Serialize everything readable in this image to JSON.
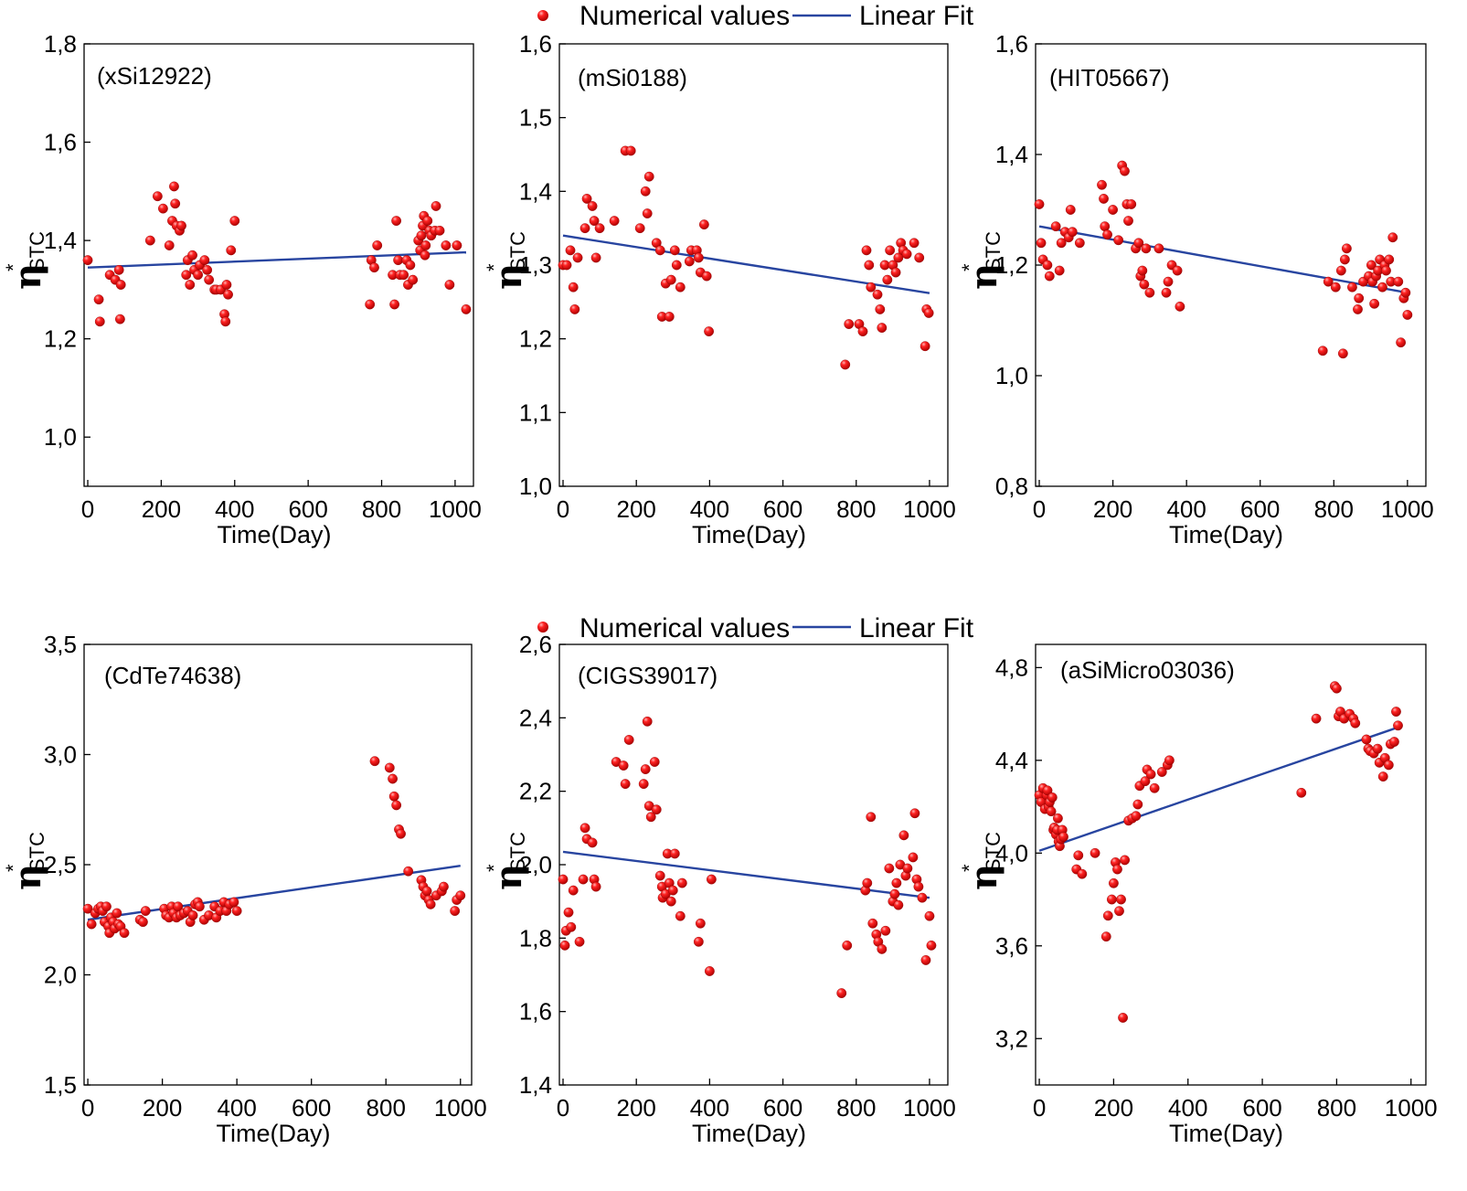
{
  "legend": {
    "points_label": "Numerical values",
    "line_label": "Linear Fit",
    "point_color": "#e41a1c",
    "line_color": "#2845a0"
  },
  "chart_data": [
    {
      "type": "scatter",
      "title": "(xSi12922)",
      "xlabel": "Time(Day)",
      "ylabel": "η*STC",
      "ylabel_main": "η",
      "ylabel_sup": "*",
      "ylabel_sub": "STC",
      "xlim": [
        -10,
        1050
      ],
      "ylim": [
        0.9,
        1.8
      ],
      "xticks": [
        0,
        200,
        400,
        600,
        800,
        1000
      ],
      "yticks": [
        1.0,
        1.2,
        1.4,
        1.6,
        1.8
      ],
      "xtick_labels": [
        "0",
        "200",
        "400",
        "600",
        "800",
        "1000"
      ],
      "ytick_labels": [
        "1,0",
        "1,2",
        "1,4",
        "1,6",
        "1,8"
      ],
      "fit": {
        "x": [
          0,
          1030
        ],
        "y": [
          1.345,
          1.376
        ]
      },
      "series": [
        {
          "name": "Numerical values",
          "x": [
            0,
            30,
            33,
            60,
            75,
            85,
            88,
            90,
            170,
            190,
            205,
            222,
            230,
            235,
            238,
            242,
            250,
            255,
            268,
            272,
            278,
            285,
            290,
            300,
            305,
            318,
            325,
            330,
            345,
            350,
            362,
            372,
            375,
            378,
            382,
            390,
            400,
            768,
            772,
            780,
            788,
            830,
            835,
            840,
            845,
            850,
            860,
            868,
            872,
            878,
            885,
            900,
            905,
            908,
            912,
            915,
            918,
            920,
            925,
            930,
            935,
            945,
            948,
            958,
            975,
            985,
            1005,
            1030
          ],
          "y": [
            1.36,
            1.28,
            1.235,
            1.33,
            1.32,
            1.34,
            1.24,
            1.31,
            1.4,
            1.49,
            1.465,
            1.39,
            1.44,
            1.51,
            1.475,
            1.43,
            1.42,
            1.43,
            1.33,
            1.36,
            1.31,
            1.37,
            1.34,
            1.33,
            1.35,
            1.36,
            1.34,
            1.32,
            1.3,
            1.3,
            1.3,
            1.25,
            1.235,
            1.31,
            1.29,
            1.38,
            1.44,
            1.27,
            1.36,
            1.345,
            1.39,
            1.33,
            1.27,
            1.44,
            1.36,
            1.33,
            1.33,
            1.36,
            1.31,
            1.35,
            1.32,
            1.4,
            1.38,
            1.41,
            1.43,
            1.45,
            1.37,
            1.39,
            1.44,
            1.42,
            1.41,
            1.42,
            1.47,
            1.42,
            1.39,
            1.31,
            1.39,
            1.26
          ]
        }
      ]
    },
    {
      "type": "scatter",
      "title": "(mSi0188)",
      "xlabel": "Time(Day)",
      "ylabel": "η*STC",
      "ylabel_main": "η",
      "ylabel_sup": "*",
      "ylabel_sub": "STC",
      "xlim": [
        -10,
        1050
      ],
      "ylim": [
        1.0,
        1.6
      ],
      "xticks": [
        0,
        200,
        400,
        600,
        800,
        1000
      ],
      "yticks": [
        1.0,
        1.1,
        1.2,
        1.3,
        1.4,
        1.5,
        1.6
      ],
      "xtick_labels": [
        "0",
        "200",
        "400",
        "600",
        "800",
        "1000"
      ],
      "ytick_labels": [
        "1,0",
        "1,1",
        "1,2",
        "1,3",
        "1,4",
        "1,5",
        "1,6"
      ],
      "fit": {
        "x": [
          0,
          1000
        ],
        "y": [
          1.34,
          1.262
        ]
      },
      "series": [
        {
          "name": "Numerical values",
          "x": [
            0,
            10,
            20,
            28,
            32,
            40,
            60,
            65,
            80,
            85,
            90,
            100,
            140,
            170,
            185,
            210,
            225,
            230,
            235,
            255,
            265,
            270,
            280,
            290,
            295,
            305,
            310,
            320,
            345,
            350,
            365,
            370,
            375,
            385,
            392,
            398,
            770,
            780,
            808,
            818,
            828,
            835,
            840,
            858,
            865,
            870,
            878,
            885,
            892,
            900,
            908,
            915,
            922,
            928,
            938,
            958,
            972,
            988,
            992,
            998
          ],
          "y": [
            1.3,
            1.3,
            1.32,
            1.27,
            1.24,
            1.31,
            1.35,
            1.39,
            1.38,
            1.36,
            1.31,
            1.35,
            1.36,
            1.455,
            1.455,
            1.35,
            1.4,
            1.37,
            1.42,
            1.33,
            1.32,
            1.23,
            1.275,
            1.23,
            1.28,
            1.32,
            1.3,
            1.27,
            1.305,
            1.32,
            1.32,
            1.31,
            1.29,
            1.355,
            1.285,
            1.21,
            1.165,
            1.22,
            1.22,
            1.21,
            1.32,
            1.3,
            1.27,
            1.26,
            1.24,
            1.215,
            1.3,
            1.28,
            1.32,
            1.3,
            1.29,
            1.31,
            1.33,
            1.32,
            1.315,
            1.33,
            1.31,
            1.19,
            1.24,
            1.235
          ]
        }
      ]
    },
    {
      "type": "scatter",
      "title": "(HIT05667)",
      "xlabel": "Time(Day)",
      "ylabel": "η*STC",
      "ylabel_main": "η",
      "ylabel_sup": "*",
      "ylabel_sub": "STC",
      "xlim": [
        -10,
        1050
      ],
      "ylim": [
        0.8,
        1.6
      ],
      "xticks": [
        0,
        200,
        400,
        600,
        800,
        1000
      ],
      "yticks": [
        0.8,
        1.0,
        1.2,
        1.4,
        1.6
      ],
      "xtick_labels": [
        "0",
        "200",
        "400",
        "600",
        "800",
        "1000"
      ],
      "ytick_labels": [
        "0,8",
        "1,0",
        "1,2",
        "1,4",
        "1,6"
      ],
      "fit": {
        "x": [
          0,
          1000
        ],
        "y": [
          1.27,
          1.15
        ]
      },
      "series": [
        {
          "name": "Numerical values",
          "x": [
            0,
            5,
            10,
            22,
            28,
            45,
            55,
            60,
            70,
            80,
            85,
            90,
            110,
            170,
            175,
            178,
            185,
            200,
            215,
            225,
            232,
            238,
            242,
            250,
            262,
            270,
            275,
            280,
            285,
            290,
            300,
            325,
            345,
            350,
            360,
            375,
            382,
            770,
            785,
            805,
            820,
            825,
            830,
            835,
            850,
            865,
            868,
            880,
            895,
            902,
            905,
            910,
            915,
            920,
            925,
            932,
            938,
            942,
            950,
            955,
            960,
            975,
            982,
            990,
            995,
            1000
          ],
          "y": [
            1.31,
            1.24,
            1.21,
            1.2,
            1.18,
            1.27,
            1.19,
            1.24,
            1.26,
            1.25,
            1.3,
            1.26,
            1.24,
            1.345,
            1.32,
            1.27,
            1.255,
            1.3,
            1.245,
            1.38,
            1.37,
            1.31,
            1.28,
            1.31,
            1.23,
            1.24,
            1.18,
            1.19,
            1.165,
            1.23,
            1.15,
            1.23,
            1.15,
            1.17,
            1.2,
            1.19,
            1.125,
            1.045,
            1.17,
            1.16,
            1.19,
            1.04,
            1.21,
            1.23,
            1.16,
            1.12,
            1.14,
            1.17,
            1.18,
            1.2,
            1.17,
            1.13,
            1.18,
            1.19,
            1.21,
            1.16,
            1.2,
            1.19,
            1.21,
            1.17,
            1.25,
            1.17,
            1.06,
            1.14,
            1.15,
            1.11
          ]
        }
      ]
    },
    {
      "type": "scatter",
      "title": "(CdTe74638)",
      "xlabel": "Time(Day)",
      "ylabel": "η*STC",
      "ylabel_main": "η",
      "ylabel_sup": "*",
      "ylabel_sub": "STC",
      "xlim": [
        -10,
        1030
      ],
      "ylim": [
        1.5,
        3.5
      ],
      "xticks": [
        0,
        200,
        400,
        600,
        800,
        1000
      ],
      "yticks": [
        1.5,
        2.0,
        2.5,
        3.0,
        3.5
      ],
      "xtick_labels": [
        "0",
        "200",
        "400",
        "600",
        "800",
        "1000"
      ],
      "ytick_labels": [
        "1,5",
        "2,0",
        "2,5",
        "3,0",
        "3,5"
      ],
      "fit": {
        "x": [
          0,
          1000
        ],
        "y": [
          2.25,
          2.495
        ]
      },
      "series": [
        {
          "name": "Numerical values",
          "x": [
            0,
            10,
            20,
            28,
            35,
            40,
            45,
            50,
            55,
            58,
            62,
            68,
            72,
            78,
            82,
            88,
            98,
            140,
            148,
            155,
            205,
            210,
            218,
            225,
            230,
            238,
            242,
            248,
            258,
            268,
            275,
            282,
            288,
            295,
            300,
            312,
            325,
            340,
            345,
            355,
            365,
            372,
            380,
            392,
            400,
            770,
            810,
            818,
            822,
            828,
            835,
            840,
            860,
            895,
            900,
            905,
            910,
            915,
            920,
            935,
            950,
            955,
            985,
            990,
            1000
          ],
          "y": [
            2.3,
            2.23,
            2.28,
            2.3,
            2.31,
            2.29,
            2.24,
            2.31,
            2.22,
            2.19,
            2.26,
            2.24,
            2.21,
            2.28,
            2.23,
            2.22,
            2.19,
            2.25,
            2.24,
            2.29,
            2.3,
            2.27,
            2.26,
            2.31,
            2.28,
            2.26,
            2.31,
            2.27,
            2.28,
            2.29,
            2.24,
            2.27,
            2.32,
            2.33,
            2.31,
            2.25,
            2.27,
            2.31,
            2.26,
            2.29,
            2.33,
            2.29,
            2.32,
            2.33,
            2.29,
            2.97,
            2.94,
            2.89,
            2.81,
            2.77,
            2.66,
            2.64,
            2.47,
            2.43,
            2.4,
            2.36,
            2.38,
            2.34,
            2.32,
            2.36,
            2.38,
            2.4,
            2.29,
            2.34,
            2.36
          ]
        }
      ]
    },
    {
      "type": "scatter",
      "title": "(CIGS39017)",
      "xlabel": "Time(Day)",
      "ylabel": "η*STC",
      "ylabel_main": "η",
      "ylabel_sup": "*",
      "ylabel_sub": "STC",
      "xlim": [
        -10,
        1050
      ],
      "ylim": [
        1.4,
        2.6
      ],
      "xticks": [
        0,
        200,
        400,
        600,
        800,
        1000
      ],
      "yticks": [
        1.4,
        1.6,
        1.8,
        2.0,
        2.2,
        2.4,
        2.6
      ],
      "xtick_labels": [
        "0",
        "200",
        "400",
        "600",
        "800",
        "1000"
      ],
      "ytick_labels": [
        "1,4",
        "1,6",
        "1,8",
        "2,0",
        "2,2",
        "2,4",
        "2,6"
      ],
      "fit": {
        "x": [
          0,
          1000
        ],
        "y": [
          2.035,
          1.91
        ]
      },
      "series": [
        {
          "name": "Numerical values",
          "x": [
            0,
            5,
            8,
            15,
            22,
            28,
            45,
            55,
            60,
            65,
            80,
            85,
            90,
            145,
            165,
            170,
            180,
            220,
            225,
            230,
            235,
            240,
            250,
            255,
            265,
            270,
            272,
            280,
            285,
            290,
            295,
            300,
            305,
            320,
            325,
            370,
            375,
            400,
            405,
            760,
            775,
            825,
            830,
            840,
            845,
            855,
            860,
            870,
            880,
            890,
            900,
            905,
            910,
            915,
            920,
            930,
            935,
            940,
            955,
            960,
            965,
            970,
            980,
            990,
            1000,
            1005
          ],
          "y": [
            1.96,
            1.78,
            1.82,
            1.87,
            1.83,
            1.93,
            1.79,
            1.96,
            2.1,
            2.07,
            2.06,
            1.96,
            1.94,
            2.28,
            2.27,
            2.22,
            2.34,
            2.22,
            2.26,
            2.39,
            2.16,
            2.13,
            2.28,
            2.15,
            1.97,
            1.94,
            1.91,
            1.92,
            2.03,
            1.95,
            1.9,
            1.93,
            2.03,
            1.86,
            1.95,
            1.79,
            1.84,
            1.71,
            1.96,
            1.65,
            1.78,
            1.93,
            1.95,
            2.13,
            1.84,
            1.81,
            1.79,
            1.77,
            1.82,
            1.99,
            1.9,
            1.92,
            1.95,
            1.89,
            2.0,
            2.08,
            1.97,
            1.99,
            2.02,
            2.14,
            1.96,
            1.94,
            1.91,
            1.74,
            1.86,
            1.78
          ]
        }
      ]
    },
    {
      "type": "scatter",
      "title": "(aSiMicro03036)",
      "xlabel": "Time(Day)",
      "ylabel": "η*STC",
      "ylabel_main": "η",
      "ylabel_sup": "*",
      "ylabel_sub": "STC",
      "xlim": [
        -10,
        1040
      ],
      "ylim": [
        3.0,
        4.9
      ],
      "xticks": [
        0,
        200,
        400,
        600,
        800,
        1000
      ],
      "yticks": [
        3.2,
        3.6,
        4.0,
        4.4,
        4.8
      ],
      "xtick_labels": [
        "0",
        "200",
        "400",
        "600",
        "800",
        "1000"
      ],
      "ytick_labels": [
        "3,2",
        "3,6",
        "4,0",
        "4,4",
        "4,8"
      ],
      "fit": {
        "x": [
          0,
          970
        ],
        "y": [
          4.01,
          4.545
        ]
      },
      "series": [
        {
          "name": "Numerical values",
          "x": [
            0,
            5,
            10,
            15,
            20,
            22,
            25,
            28,
            32,
            35,
            38,
            40,
            45,
            48,
            50,
            52,
            55,
            58,
            62,
            65,
            100,
            105,
            115,
            150,
            180,
            185,
            195,
            200,
            205,
            210,
            215,
            220,
            225,
            230,
            240,
            250,
            260,
            265,
            270,
            285,
            290,
            300,
            310,
            330,
            345,
            350,
            705,
            745,
            795,
            800,
            805,
            810,
            820,
            835,
            845,
            850,
            880,
            885,
            890,
            900,
            910,
            915,
            925,
            930,
            940,
            945,
            955,
            960,
            965
          ],
          "y": [
            4.25,
            4.22,
            4.28,
            4.19,
            4.25,
            4.27,
            4.2,
            4.22,
            4.18,
            4.24,
            4.1,
            4.11,
            4.08,
            4.1,
            4.15,
            4.05,
            4.03,
            4.06,
            4.1,
            4.07,
            3.93,
            3.99,
            3.91,
            4.0,
            3.64,
            3.73,
            3.8,
            3.87,
            3.96,
            3.93,
            3.75,
            3.8,
            3.29,
            3.97,
            4.14,
            4.15,
            4.16,
            4.21,
            4.29,
            4.31,
            4.36,
            4.34,
            4.28,
            4.35,
            4.38,
            4.4,
            4.26,
            4.58,
            4.72,
            4.71,
            4.59,
            4.61,
            4.58,
            4.6,
            4.58,
            4.56,
            4.49,
            4.45,
            4.44,
            4.43,
            4.45,
            4.39,
            4.33,
            4.41,
            4.38,
            4.47,
            4.48,
            4.61,
            4.55
          ]
        }
      ]
    }
  ]
}
